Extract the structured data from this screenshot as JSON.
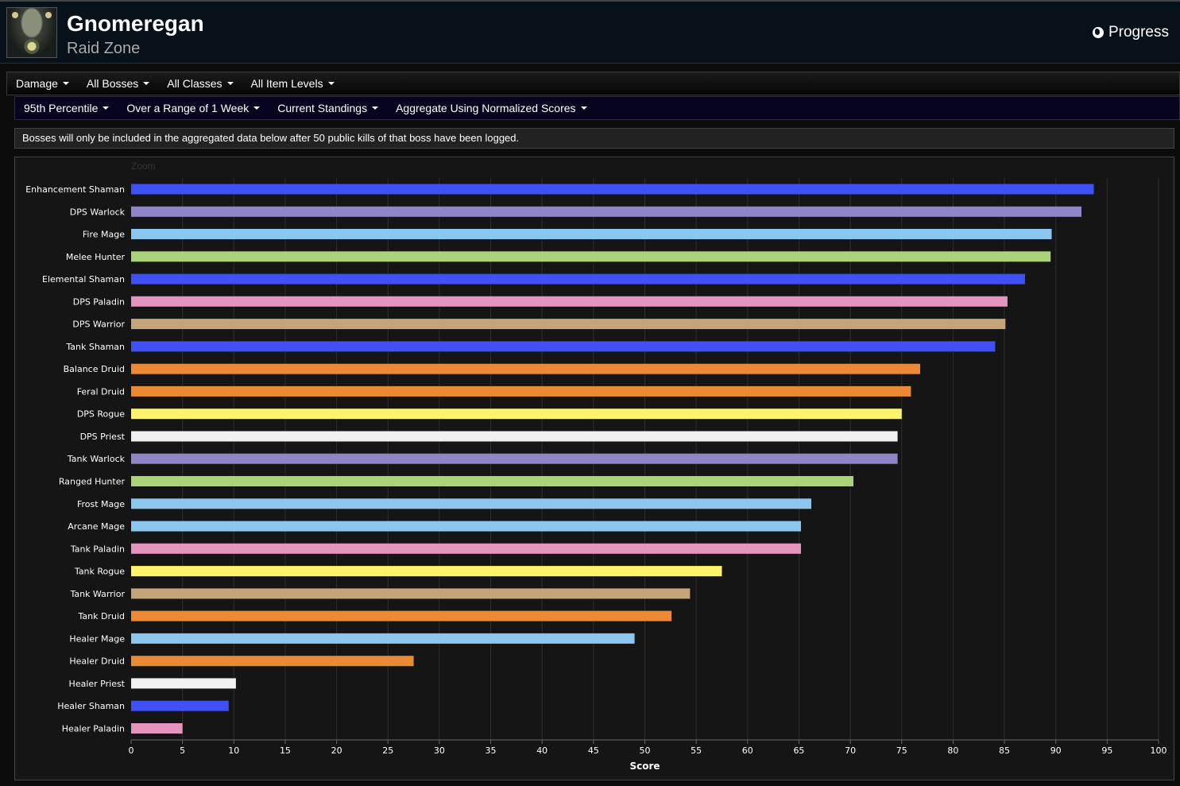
{
  "header": {
    "title": "Gnomeregan",
    "subtitle": "Raid Zone",
    "progress_label": "Progress"
  },
  "filters_row1": [
    {
      "label": "Damage"
    },
    {
      "label": "All Bosses"
    },
    {
      "label": "All Classes"
    },
    {
      "label": "All Item Levels"
    }
  ],
  "filters_row2": [
    {
      "label": "95th Percentile"
    },
    {
      "label": "Over a Range of 1 Week"
    },
    {
      "label": "Current Standings"
    },
    {
      "label": "Aggregate Using Normalized Scores"
    }
  ],
  "notice": "Bosses will only be included in the aggregated data below after 50 public kills of that boss have been logged.",
  "chart": {
    "zoom_label": "Zoom"
  },
  "chart_data": {
    "type": "bar",
    "orientation": "horizontal",
    "title": "",
    "xlabel": "Score",
    "ylabel": "",
    "xlim": [
      0,
      100
    ],
    "xticks": [
      0,
      5,
      10,
      15,
      20,
      25,
      30,
      35,
      40,
      45,
      50,
      55,
      60,
      65,
      70,
      75,
      80,
      85,
      90,
      95,
      100
    ],
    "grid": true,
    "categories": [
      "Enhancement Shaman",
      "DPS Warlock",
      "Fire Mage",
      "Melee Hunter",
      "Elemental Shaman",
      "DPS Paladin",
      "DPS Warrior",
      "Tank Shaman",
      "Balance Druid",
      "Feral Druid",
      "DPS Rogue",
      "DPS Priest",
      "Tank Warlock",
      "Ranged Hunter",
      "Frost Mage",
      "Arcane Mage",
      "Tank Paladin",
      "Tank Rogue",
      "Tank Warrior",
      "Tank Druid",
      "Healer Mage",
      "Healer Druid",
      "Healer Priest",
      "Healer Shaman",
      "Healer Paladin"
    ],
    "values": [
      93.7,
      92.5,
      89.6,
      89.5,
      87.0,
      85.3,
      85.1,
      84.1,
      76.8,
      75.9,
      75.0,
      74.6,
      74.6,
      70.3,
      66.2,
      65.2,
      65.2,
      57.5,
      54.4,
      52.6,
      49.0,
      27.5,
      10.2,
      9.5,
      5.0
    ],
    "colors": [
      "#3f51f5",
      "#8f86c7",
      "#8ac6ee",
      "#abd47a",
      "#3f51f5",
      "#e494bf",
      "#c4a579",
      "#3f51f5",
      "#eb8934",
      "#eb8934",
      "#fff36b",
      "#f0f0f0",
      "#8f86c7",
      "#abd47a",
      "#8ac6ee",
      "#8ac6ee",
      "#e494bf",
      "#fff36b",
      "#c4a579",
      "#eb8934",
      "#8ac6ee",
      "#eb8934",
      "#f0f0f0",
      "#3f51f5",
      "#e494bf"
    ]
  }
}
